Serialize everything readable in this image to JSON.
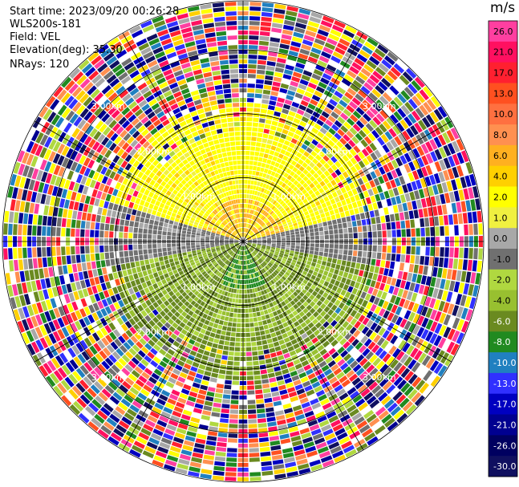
{
  "header": {
    "start_time": "Start time: 2023/09/20 00:26:28",
    "station": "WLS200s-181",
    "field": "Field: VEL",
    "elevation": "Elevation(deg): 35.30",
    "nrays": "NRays: 120"
  },
  "colorbar": {
    "unit": "m/s",
    "ticks": [
      "26.0",
      "21.0",
      "17.0",
      "13.0",
      "10.0",
      "8.0",
      "6.0",
      "4.0",
      "2.0",
      "1.0",
      "0.0",
      "-1.0",
      "-2.0",
      "-4.0",
      "-6.0",
      "-8.0",
      "-10.0",
      "-13.0",
      "-17.0",
      "-21.0",
      "-26.0",
      "-30.0"
    ],
    "colors": [
      "#ff3fa0",
      "#ff1060",
      "#ff2030",
      "#ff5020",
      "#ff7040",
      "#ff9050",
      "#ffb020",
      "#ffd000",
      "#ffff00",
      "#f0f040",
      "#a8a8a8",
      "#707070",
      "#b0d840",
      "#98c030",
      "#6a8a20",
      "#208a20",
      "#2080c0",
      "#3030ff",
      "#0000c0",
      "#000090",
      "#000060",
      "#101060"
    ]
  },
  "chart_data": {
    "type": "heatmap",
    "projection": "polar PPI",
    "nrays": 120,
    "range_rings_km": [
      1.0,
      2.0,
      3.0
    ],
    "ring_labels": [
      "1.00km",
      "2.00km",
      "3.00km"
    ],
    "field": "VEL",
    "units": "m/s",
    "vmin": -30,
    "vmax": 30
  }
}
